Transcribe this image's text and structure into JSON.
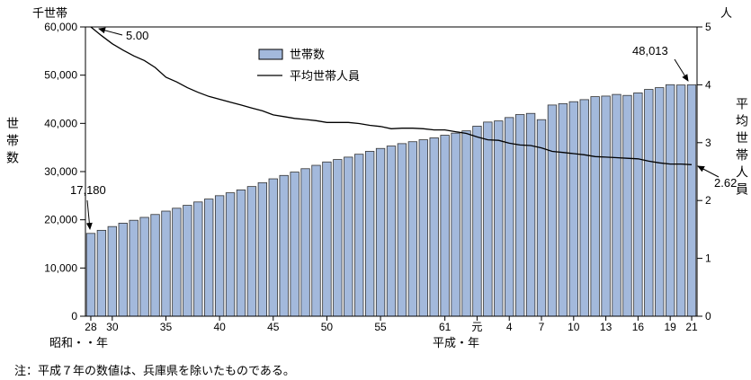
{
  "page": {
    "note": "注：平成７年の数値は、兵庫県を除いたものである。"
  },
  "chart_data": {
    "type": "bar",
    "title": "",
    "unit_left": "千世帯",
    "unit_right": "人",
    "axis_title_left": "世帯数",
    "axis_title_right": "平均世帯人員",
    "era_label_showa": "昭和・・年",
    "era_label_heisei": "平成・年",
    "ylim_left": [
      0,
      60000
    ],
    "ylim_right": [
      0,
      5
    ],
    "y_left_ticks": [
      "0",
      "10,000",
      "20,000",
      "30,000",
      "40,000",
      "50,000",
      "60,000"
    ],
    "y_right_ticks": [
      "0",
      "1",
      "2",
      "3",
      "4",
      "5"
    ],
    "x_ticks": [
      {
        "i": 0,
        "label": "28"
      },
      {
        "i": 2,
        "label": "30"
      },
      {
        "i": 7,
        "label": "35"
      },
      {
        "i": 12,
        "label": "40"
      },
      {
        "i": 17,
        "label": "45"
      },
      {
        "i": 22,
        "label": "50"
      },
      {
        "i": 27,
        "label": "55"
      },
      {
        "i": 33,
        "label": "61"
      },
      {
        "i": 36,
        "label": "元"
      },
      {
        "i": 39,
        "label": "4"
      },
      {
        "i": 42,
        "label": "7"
      },
      {
        "i": 45,
        "label": "10"
      },
      {
        "i": 48,
        "label": "13"
      },
      {
        "i": 51,
        "label": "16"
      },
      {
        "i": 54,
        "label": "19"
      },
      {
        "i": 56,
        "label": "21"
      }
    ],
    "legend": [
      {
        "label": "世帯数",
        "type": "bar"
      },
      {
        "label": "平均世帯人員",
        "type": "line"
      }
    ],
    "series": [
      {
        "name": "世帯数",
        "type": "bar",
        "axis": "left",
        "values": [
          17180,
          17820,
          18600,
          19300,
          19900,
          20500,
          21100,
          21800,
          22400,
          23000,
          23700,
          24300,
          25000,
          25600,
          26200,
          26900,
          27700,
          28500,
          29200,
          29900,
          30600,
          31300,
          32000,
          32500,
          33000,
          33600,
          34200,
          34800,
          35300,
          35800,
          36200,
          36600,
          37000,
          37544,
          37985,
          38452,
          39417,
          40273,
          40506,
          41210,
          41826,
          42069,
          40770,
          43807,
          44100,
          44496,
          44923,
          45545,
          45664,
          46005,
          45800,
          46323,
          47043,
          47410,
          48023,
          47957,
          48013
        ]
      },
      {
        "name": "平均世帯人員",
        "type": "line",
        "axis": "right",
        "values": [
          5.0,
          4.85,
          4.71,
          4.6,
          4.5,
          4.42,
          4.3,
          4.13,
          4.05,
          3.95,
          3.87,
          3.8,
          3.75,
          3.7,
          3.65,
          3.6,
          3.55,
          3.48,
          3.45,
          3.42,
          3.4,
          3.38,
          3.35,
          3.35,
          3.35,
          3.33,
          3.3,
          3.28,
          3.24,
          3.25,
          3.25,
          3.24,
          3.22,
          3.22,
          3.19,
          3.16,
          3.1,
          3.05,
          3.04,
          2.99,
          2.96,
          2.95,
          2.91,
          2.85,
          2.83,
          2.81,
          2.79,
          2.76,
          2.75,
          2.74,
          2.73,
          2.72,
          2.68,
          2.65,
          2.63,
          2.63,
          2.62
        ]
      }
    ],
    "annotations": [
      {
        "id": "line-start",
        "text": "5.00"
      },
      {
        "id": "first-bar",
        "text": "17,180"
      },
      {
        "id": "last-bar",
        "text": "48,013"
      },
      {
        "id": "line-end",
        "text": "2.62"
      }
    ],
    "colors": {
      "bar_fill": "#a3b9dc",
      "bar_stroke": "#333333",
      "line": "#000000",
      "axis": "#000000"
    }
  }
}
